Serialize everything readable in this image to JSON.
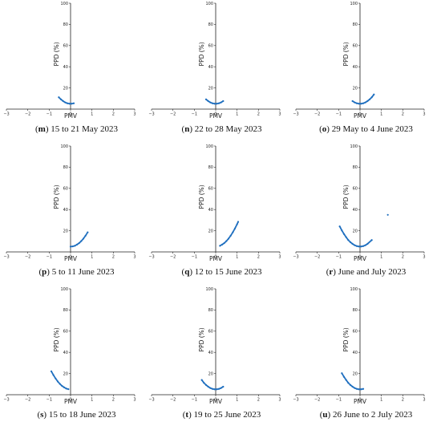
{
  "chart_data": [
    {
      "type": "scatter",
      "panel_letter": "m",
      "caption": "15 to 21 May 2023",
      "xlabel": "PMV",
      "ylabel": "PPD (%)",
      "xlim": [
        -3,
        3
      ],
      "ylim": [
        0,
        100
      ],
      "xticks": [
        "−3",
        "−2",
        "−1",
        "0",
        "1",
        "2",
        "3"
      ],
      "yticks": [
        "20",
        "40",
        "60",
        "80",
        "100"
      ],
      "color": "#1f6fbf",
      "series": [
        {
          "x": [
            -0.55,
            -0.45,
            -0.35,
            -0.25,
            -0.15,
            -0.05,
            0.05,
            0.15
          ],
          "y": [
            11.2,
            9.2,
            7.6,
            6.3,
            5.5,
            5.1,
            5.1,
            5.5
          ]
        }
      ]
    },
    {
      "type": "scatter",
      "panel_letter": "n",
      "caption": "22 to 28 May 2023",
      "xlabel": "PMV",
      "ylabel": "PPD (%)",
      "xlim": [
        -3,
        3
      ],
      "ylim": [
        0,
        100
      ],
      "xticks": [
        "−3",
        "−2",
        "−1",
        "0",
        "1",
        "2",
        "3"
      ],
      "yticks": [
        "20",
        "40",
        "60",
        "80",
        "100"
      ],
      "color": "#1f6fbf",
      "series": [
        {
          "x": [
            -0.45,
            -0.35,
            -0.25,
            -0.15,
            -0.05,
            0.05,
            0.15,
            0.25,
            0.35
          ],
          "y": [
            9.2,
            7.6,
            6.3,
            5.5,
            5.1,
            5.1,
            5.5,
            6.3,
            7.6
          ]
        }
      ]
    },
    {
      "type": "scatter",
      "panel_letter": "o",
      "caption": "29 May to 4 June 2023",
      "xlabel": "PMV",
      "ylabel": "PPD (%)",
      "xlim": [
        -3,
        3
      ],
      "ylim": [
        0,
        100
      ],
      "xticks": [
        "−3",
        "−2",
        "−1",
        "0",
        "1",
        "2",
        "3"
      ],
      "yticks": [
        "20",
        "40",
        "60",
        "80",
        "100"
      ],
      "color": "#1f6fbf",
      "series": [
        {
          "x": [
            -0.35,
            -0.25,
            -0.15,
            -0.05,
            0.05,
            0.15,
            0.25,
            0.35,
            0.45,
            0.55,
            0.65
          ],
          "y": [
            7.6,
            6.3,
            5.5,
            5.1,
            5.1,
            5.5,
            6.3,
            7.6,
            9.2,
            11.2,
            13.8
          ]
        }
      ]
    },
    {
      "type": "scatter",
      "panel_letter": "p",
      "caption": "5 to 11 June 2023",
      "xlabel": "PMV",
      "ylabel": "PPD (%)",
      "xlim": [
        -3,
        3
      ],
      "ylim": [
        0,
        100
      ],
      "xticks": [
        "−3",
        "−2",
        "−1",
        "0",
        "1",
        "2",
        "3"
      ],
      "yticks": [
        "20",
        "40",
        "60",
        "80",
        "100"
      ],
      "color": "#1f6fbf",
      "series": [
        {
          "x": [
            0.0,
            0.1,
            0.2,
            0.3,
            0.4,
            0.5,
            0.6,
            0.7,
            0.8
          ],
          "y": [
            5.0,
            5.2,
            5.8,
            6.9,
            8.3,
            10.2,
            12.5,
            15.3,
            18.5
          ]
        }
      ]
    },
    {
      "type": "scatter",
      "panel_letter": "q",
      "caption": "12 to 15 June 2023",
      "xlabel": "PMV",
      "ylabel": "PPD (%)",
      "xlim": [
        -3,
        3
      ],
      "ylim": [
        0,
        100
      ],
      "xticks": [
        "−3",
        "−2",
        "−1",
        "0",
        "1",
        "2",
        "3"
      ],
      "yticks": [
        "20",
        "40",
        "60",
        "80",
        "100"
      ],
      "color": "#1f6fbf",
      "series": [
        {
          "x": [
            0.2,
            0.3,
            0.4,
            0.5,
            0.6,
            0.7,
            0.8,
            0.9,
            1.0,
            1.05
          ],
          "y": [
            5.8,
            6.9,
            8.3,
            10.2,
            12.5,
            15.3,
            18.5,
            22.1,
            26.1,
            28.4
          ]
        }
      ]
    },
    {
      "type": "scatter",
      "panel_letter": "r",
      "caption": "June and July 2023",
      "xlabel": "PMV",
      "ylabel": "PPD (%)",
      "xlim": [
        -3,
        3
      ],
      "ylim": [
        0,
        100
      ],
      "xticks": [
        "−3",
        "−2",
        "−1",
        "0",
        "1",
        "2",
        "3"
      ],
      "yticks": [
        "20",
        "40",
        "60",
        "80",
        "100"
      ],
      "color": "#1f6fbf",
      "series": [
        {
          "x": [
            -0.95,
            -0.85,
            -0.75,
            -0.65,
            -0.55,
            -0.45,
            -0.35,
            -0.25,
            -0.15,
            -0.05,
            0.05,
            0.15,
            0.25,
            0.35,
            0.55,
            1.3
          ],
          "y": [
            24.1,
            20.3,
            16.9,
            13.9,
            11.2,
            9.2,
            7.6,
            6.3,
            5.5,
            5.1,
            5.1,
            5.5,
            6.3,
            7.6,
            11.2,
            35.0
          ]
        }
      ]
    },
    {
      "type": "scatter",
      "panel_letter": "s",
      "caption": "15 to 18 June 2023",
      "xlabel": "PMV",
      "ylabel": "PPD (%)",
      "xlim": [
        -3,
        3
      ],
      "ylim": [
        0,
        100
      ],
      "xticks": [
        "−3",
        "−2",
        "−1",
        "0",
        "1",
        "2",
        "3"
      ],
      "yticks": [
        "20",
        "40",
        "60",
        "80",
        "100"
      ],
      "color": "#1f6fbf",
      "series": [
        {
          "x": [
            -0.9,
            -0.8,
            -0.7,
            -0.6,
            -0.5,
            -0.4,
            -0.3,
            -0.2,
            -0.1
          ],
          "y": [
            22.1,
            18.5,
            15.3,
            12.5,
            10.2,
            8.3,
            6.9,
            5.8,
            5.2
          ]
        }
      ]
    },
    {
      "type": "scatter",
      "panel_letter": "t",
      "caption": "19 to 25 June 2023",
      "xlabel": "PMV",
      "ylabel": "PPD (%)",
      "xlim": [
        -3,
        3
      ],
      "ylim": [
        0,
        100
      ],
      "xticks": [
        "−3",
        "−2",
        "−1",
        "0",
        "1",
        "2",
        "3"
      ],
      "yticks": [
        "20",
        "40",
        "60",
        "80",
        "100"
      ],
      "color": "#1f6fbf",
      "series": [
        {
          "x": [
            -0.65,
            -0.55,
            -0.45,
            -0.35,
            -0.25,
            -0.15,
            -0.05,
            0.05,
            0.15,
            0.25,
            0.35
          ],
          "y": [
            13.9,
            11.2,
            9.2,
            7.6,
            6.3,
            5.5,
            5.1,
            5.1,
            5.5,
            6.3,
            7.6
          ]
        }
      ]
    },
    {
      "type": "scatter",
      "panel_letter": "u",
      "caption": "26 June to 2 July 2023",
      "xlabel": "PMV",
      "ylabel": "PPD (%)",
      "xlim": [
        -3,
        3
      ],
      "ylim": [
        0,
        100
      ],
      "xticks": [
        "−3",
        "−2",
        "−1",
        "0",
        "1",
        "2",
        "3"
      ],
      "yticks": [
        "20",
        "40",
        "60",
        "80",
        "100"
      ],
      "color": "#1f6fbf",
      "series": [
        {
          "x": [
            -0.85,
            -0.75,
            -0.65,
            -0.55,
            -0.45,
            -0.35,
            -0.25,
            -0.15,
            -0.05,
            0.05,
            0.15
          ],
          "y": [
            20.3,
            16.9,
            13.9,
            11.2,
            9.2,
            7.6,
            6.3,
            5.5,
            5.1,
            5.1,
            5.5
          ]
        }
      ]
    }
  ]
}
